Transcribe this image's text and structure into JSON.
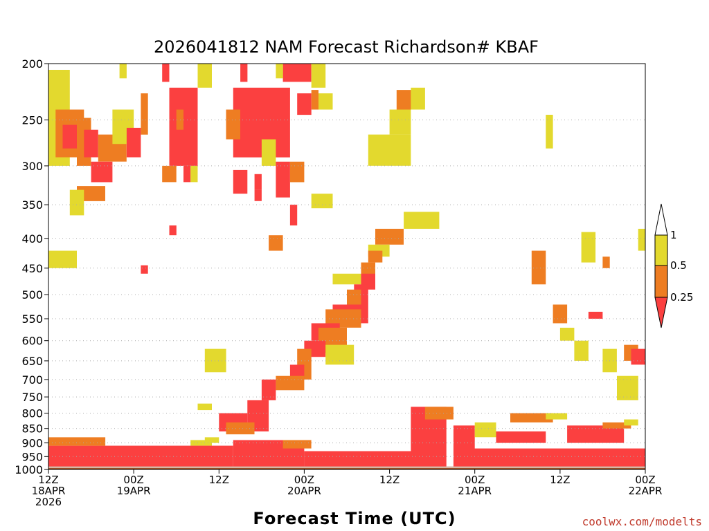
{
  "chart_data": {
    "type": "heatmap",
    "title": "2026041812 NAM Forecast Richardson# KBAF",
    "xlabel": "Forecast Time (UTC)",
    "ylabel": "",
    "credit": "coolwx.com/modelts",
    "x_range_hours": [
      0,
      84
    ],
    "y_axis": {
      "scale": "pressure (hPa), inverted",
      "range": [
        1000,
        200
      ],
      "ticks": [
        "200",
        "250",
        "300",
        "350",
        "400",
        "450",
        "500",
        "550",
        "600",
        "650",
        "700",
        "750",
        "800",
        "850",
        "900",
        "950",
        "1000"
      ],
      "tick_values": [
        200,
        250,
        300,
        350,
        400,
        450,
        500,
        550,
        600,
        650,
        700,
        750,
        800,
        850,
        900,
        950,
        1000
      ]
    },
    "x_axis": {
      "ticks": [
        {
          "hour": 0,
          "line1": "12Z",
          "line2": "18APR",
          "line3": "2026"
        },
        {
          "hour": 12,
          "line1": "00Z",
          "line2": "19APR",
          "line3": ""
        },
        {
          "hour": 24,
          "line1": "12Z",
          "line2": "",
          "line3": ""
        },
        {
          "hour": 36,
          "line1": "00Z",
          "line2": "20APR",
          "line3": ""
        },
        {
          "hour": 48,
          "line1": "12Z",
          "line2": "",
          "line3": ""
        },
        {
          "hour": 60,
          "line1": "00Z",
          "line2": "21APR",
          "line3": ""
        },
        {
          "hour": 72,
          "line1": "12Z",
          "line2": "",
          "line3": ""
        },
        {
          "hour": 84,
          "line1": "00Z",
          "line2": "22APR",
          "line3": ""
        }
      ]
    },
    "legend": {
      "placement": "right",
      "levels": [
        "1",
        "0.5",
        "0.25"
      ],
      "bins": [
        {
          "label": "0.5–1",
          "color": "#e3d92e"
        },
        {
          "label": "0.25–0.5",
          "color": "#ee7d22"
        },
        {
          "label": "<0.25",
          "color": "#fb4040"
        }
      ],
      "top_color": "#ffffff",
      "ground_color": "#9a4f26"
    },
    "colors": {
      "Y": "#e3d92e",
      "O": "#ee7d22",
      "R": "#fb4040",
      "ground": "#9a4f26",
      "grid": "#aaaaaa"
    },
    "regions": [
      {
        "c": "Y",
        "t": [
          0,
          3
        ],
        "p": [
          205,
          300
        ]
      },
      {
        "c": "O",
        "t": [
          1,
          5
        ],
        "p": [
          240,
          290
        ]
      },
      {
        "c": "R",
        "t": [
          2,
          4
        ],
        "p": [
          255,
          280
        ]
      },
      {
        "c": "O",
        "t": [
          4,
          6
        ],
        "p": [
          248,
          300
        ]
      },
      {
        "c": "R",
        "t": [
          5,
          7
        ],
        "p": [
          260,
          290
        ]
      },
      {
        "c": "O",
        "t": [
          7,
          11
        ],
        "p": [
          265,
          295
        ]
      },
      {
        "c": "Y",
        "t": [
          9,
          12
        ],
        "p": [
          240,
          275
        ]
      },
      {
        "c": "R",
        "t": [
          11,
          13
        ],
        "p": [
          258,
          290
        ]
      },
      {
        "c": "O",
        "t": [
          13,
          14
        ],
        "p": [
          225,
          265
        ]
      },
      {
        "c": "R",
        "t": [
          6,
          9
        ],
        "p": [
          295,
          320
        ]
      },
      {
        "c": "O",
        "t": [
          4,
          8
        ],
        "p": [
          325,
          345
        ]
      },
      {
        "c": "Y",
        "t": [
          3,
          5
        ],
        "p": [
          330,
          365
        ]
      },
      {
        "c": "Y",
        "t": [
          0,
          4
        ],
        "p": [
          420,
          450
        ]
      },
      {
        "c": "Y",
        "t": [
          10,
          11
        ],
        "p": [
          200,
          212
        ]
      },
      {
        "c": "R",
        "t": [
          16,
          17
        ],
        "p": [
          200,
          215
        ]
      },
      {
        "c": "R",
        "t": [
          17,
          21
        ],
        "p": [
          220,
          300
        ]
      },
      {
        "c": "O",
        "t": [
          18,
          19
        ],
        "p": [
          240,
          260
        ]
      },
      {
        "c": "Y",
        "t": [
          21,
          23
        ],
        "p": [
          200,
          220
        ]
      },
      {
        "c": "O",
        "t": [
          16,
          18
        ],
        "p": [
          300,
          320
        ]
      },
      {
        "c": "R",
        "t": [
          19,
          20
        ],
        "p": [
          300,
          320
        ]
      },
      {
        "c": "Y",
        "t": [
          20,
          21
        ],
        "p": [
          300,
          320
        ]
      },
      {
        "c": "R",
        "t": [
          27,
          28
        ],
        "p": [
          200,
          215
        ]
      },
      {
        "c": "R",
        "t": [
          26,
          34
        ],
        "p": [
          220,
          290
        ]
      },
      {
        "c": "O",
        "t": [
          25,
          27
        ],
        "p": [
          240,
          270
        ]
      },
      {
        "c": "Y",
        "t": [
          30,
          32
        ],
        "p": [
          270,
          300
        ]
      },
      {
        "c": "R",
        "t": [
          26,
          28
        ],
        "p": [
          305,
          335
        ]
      },
      {
        "c": "R",
        "t": [
          29,
          30
        ],
        "p": [
          310,
          330
        ]
      },
      {
        "c": "R",
        "t": [
          32,
          34
        ],
        "p": [
          295,
          340
        ]
      },
      {
        "c": "O",
        "t": [
          34,
          36
        ],
        "p": [
          295,
          320
        ]
      },
      {
        "c": "R",
        "t": [
          33,
          37
        ],
        "p": [
          200,
          215
        ]
      },
      {
        "c": "Y",
        "t": [
          32,
          33
        ],
        "p": [
          200,
          212
        ]
      },
      {
        "c": "Y",
        "t": [
          37,
          39
        ],
        "p": [
          200,
          220
        ]
      },
      {
        "c": "R",
        "t": [
          35,
          37
        ],
        "p": [
          225,
          245
        ]
      },
      {
        "c": "O",
        "t": [
          37,
          38
        ],
        "p": [
          222,
          240
        ]
      },
      {
        "c": "Y",
        "t": [
          38,
          40
        ],
        "p": [
          225,
          240
        ]
      },
      {
        "c": "Y",
        "t": [
          37,
          40
        ],
        "p": [
          335,
          355
        ]
      },
      {
        "c": "R",
        "t": [
          34,
          35
        ],
        "p": [
          350,
          380
        ]
      },
      {
        "c": "O",
        "t": [
          31,
          33
        ],
        "p": [
          395,
          420
        ]
      },
      {
        "c": "R",
        "t": [
          29,
          30
        ],
        "p": [
          330,
          345
        ]
      },
      {
        "c": "Y",
        "t": [
          45,
          51
        ],
        "p": [
          265,
          300
        ]
      },
      {
        "c": "Y",
        "t": [
          48,
          51
        ],
        "p": [
          240,
          265
        ]
      },
      {
        "c": "O",
        "t": [
          49,
          52
        ],
        "p": [
          222,
          240
        ]
      },
      {
        "c": "Y",
        "t": [
          51,
          53
        ],
        "p": [
          220,
          240
        ]
      },
      {
        "c": "Y",
        "t": [
          50,
          55
        ],
        "p": [
          360,
          385
        ]
      },
      {
        "c": "O",
        "t": [
          46,
          50
        ],
        "p": [
          385,
          410
        ]
      },
      {
        "c": "Y",
        "t": [
          45,
          48
        ],
        "p": [
          410,
          430
        ]
      },
      {
        "c": "O",
        "t": [
          45,
          47
        ],
        "p": [
          420,
          440
        ]
      },
      {
        "c": "O",
        "t": [
          44,
          46
        ],
        "p": [
          440,
          480
        ]
      },
      {
        "c": "R",
        "t": [
          44,
          46
        ],
        "p": [
          460,
          490
        ]
      },
      {
        "c": "Y",
        "t": [
          40,
          44
        ],
        "p": [
          460,
          480
        ]
      },
      {
        "c": "R",
        "t": [
          43,
          45
        ],
        "p": [
          480,
          520
        ]
      },
      {
        "c": "O",
        "t": [
          42,
          44
        ],
        "p": [
          490,
          530
        ]
      },
      {
        "c": "R",
        "t": [
          40,
          45
        ],
        "p": [
          520,
          560
        ]
      },
      {
        "c": "O",
        "t": [
          39,
          44
        ],
        "p": [
          530,
          570
        ]
      },
      {
        "c": "R",
        "t": [
          37,
          41
        ],
        "p": [
          560,
          600
        ]
      },
      {
        "c": "O",
        "t": [
          38,
          42
        ],
        "p": [
          570,
          630
        ]
      },
      {
        "c": "R",
        "t": [
          36,
          39
        ],
        "p": [
          600,
          640
        ]
      },
      {
        "c": "O",
        "t": [
          35,
          37
        ],
        "p": [
          620,
          700
        ]
      },
      {
        "c": "Y",
        "t": [
          39,
          43
        ],
        "p": [
          610,
          660
        ]
      },
      {
        "c": "R",
        "t": [
          34,
          36
        ],
        "p": [
          660,
          700
        ]
      },
      {
        "c": "O",
        "t": [
          32,
          36
        ],
        "p": [
          690,
          730
        ]
      },
      {
        "c": "R",
        "t": [
          30,
          32
        ],
        "p": [
          700,
          760
        ]
      },
      {
        "c": "R",
        "t": [
          28,
          31
        ],
        "p": [
          760,
          860
        ]
      },
      {
        "c": "R",
        "t": [
          24,
          28
        ],
        "p": [
          800,
          860
        ]
      },
      {
        "c": "O",
        "t": [
          25,
          29
        ],
        "p": [
          830,
          870
        ]
      },
      {
        "c": "Y",
        "t": [
          22,
          24
        ],
        "p": [
          880,
          900
        ]
      },
      {
        "c": "Y",
        "t": [
          20,
          23
        ],
        "p": [
          890,
          910
        ]
      },
      {
        "c": "R",
        "t": [
          0,
          26
        ],
        "p": [
          910,
          990
        ]
      },
      {
        "c": "O",
        "t": [
          0,
          8
        ],
        "p": [
          880,
          910
        ]
      },
      {
        "c": "R",
        "t": [
          26,
          36
        ],
        "p": [
          890,
          990
        ]
      },
      {
        "c": "O",
        "t": [
          33,
          37
        ],
        "p": [
          890,
          920
        ]
      },
      {
        "c": "R",
        "t": [
          36,
          52
        ],
        "p": [
          930,
          990
        ]
      },
      {
        "c": "R",
        "t": [
          51,
          56
        ],
        "p": [
          780,
          990
        ]
      },
      {
        "c": "O",
        "t": [
          53,
          57
        ],
        "p": [
          780,
          820
        ]
      },
      {
        "c": "R",
        "t": [
          57,
          60
        ],
        "p": [
          840,
          990
        ]
      },
      {
        "c": "Y",
        "t": [
          60,
          63
        ],
        "p": [
          830,
          880
        ]
      },
      {
        "c": "R",
        "t": [
          63,
          70
        ],
        "p": [
          860,
          900
        ]
      },
      {
        "c": "O",
        "t": [
          65,
          71
        ],
        "p": [
          800,
          830
        ]
      },
      {
        "c": "Y",
        "t": [
          70,
          73
        ],
        "p": [
          800,
          820
        ]
      },
      {
        "c": "R",
        "t": [
          59,
          84
        ],
        "p": [
          920,
          990
        ]
      },
      {
        "c": "R",
        "t": [
          73,
          81
        ],
        "p": [
          840,
          900
        ]
      },
      {
        "c": "O",
        "t": [
          78,
          82
        ],
        "p": [
          830,
          850
        ]
      },
      {
        "c": "Y",
        "t": [
          81,
          83
        ],
        "p": [
          820,
          840
        ]
      },
      {
        "c": "O",
        "t": [
          68,
          70
        ],
        "p": [
          420,
          480
        ]
      },
      {
        "c": "O",
        "t": [
          71,
          73
        ],
        "p": [
          520,
          560
        ]
      },
      {
        "c": "Y",
        "t": [
          72,
          74
        ],
        "p": [
          570,
          600
        ]
      },
      {
        "c": "Y",
        "t": [
          74,
          76
        ],
        "p": [
          600,
          650
        ]
      },
      {
        "c": "Y",
        "t": [
          78,
          80
        ],
        "p": [
          620,
          680
        ]
      },
      {
        "c": "O",
        "t": [
          81,
          83
        ],
        "p": [
          610,
          650
        ]
      },
      {
        "c": "R",
        "t": [
          82,
          84
        ],
        "p": [
          620,
          660
        ]
      },
      {
        "c": "Y",
        "t": [
          80,
          83
        ],
        "p": [
          690,
          760
        ]
      },
      {
        "c": "R",
        "t": [
          76,
          78
        ],
        "p": [
          535,
          550
        ]
      },
      {
        "c": "Y",
        "t": [
          75,
          77
        ],
        "p": [
          390,
          440
        ]
      },
      {
        "c": "O",
        "t": [
          78,
          79
        ],
        "p": [
          430,
          450
        ]
      },
      {
        "c": "Y",
        "t": [
          83,
          84
        ],
        "p": [
          385,
          420
        ]
      },
      {
        "c": "Y",
        "t": [
          70,
          71
        ],
        "p": [
          245,
          280
        ]
      },
      {
        "c": "Y",
        "t": [
          22,
          25
        ],
        "p": [
          620,
          680
        ]
      },
      {
        "c": "Y",
        "t": [
          21,
          23
        ],
        "p": [
          770,
          790
        ]
      },
      {
        "c": "R",
        "t": [
          13,
          14
        ],
        "p": [
          445,
          460
        ]
      },
      {
        "c": "R",
        "t": [
          17,
          18
        ],
        "p": [
          380,
          395
        ]
      }
    ]
  }
}
